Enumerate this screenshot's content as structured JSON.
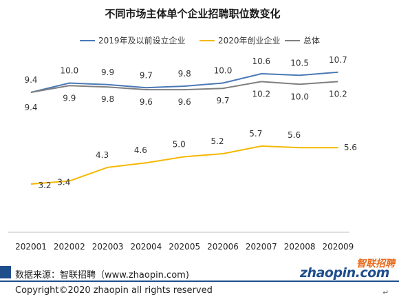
{
  "chart_data": {
    "type": "line",
    "title": "不同市场主体单个企业招聘职位数变化",
    "categories": [
      "202001",
      "202002",
      "202003",
      "202004",
      "202005",
      "202006",
      "202007",
      "202008",
      "202009"
    ],
    "ylim": [
      0,
      12
    ],
    "grid": false,
    "legend_position": "top",
    "series": [
      {
        "name": "2019年及以前设立企业",
        "color": "#4a78b5",
        "values": [
          9.4,
          10.0,
          9.9,
          9.7,
          9.8,
          10.0,
          10.6,
          10.5,
          10.7
        ]
      },
      {
        "name": "2020年创业企业",
        "color": "#f5b800",
        "values": [
          3.2,
          3.4,
          4.3,
          4.6,
          5.0,
          5.2,
          5.7,
          5.6,
          5.6
        ]
      },
      {
        "name": "总体",
        "color": "#7f7f7f",
        "values": [
          9.4,
          9.9,
          9.8,
          9.6,
          9.6,
          9.7,
          10.2,
          10.0,
          10.2
        ]
      }
    ]
  },
  "footer": {
    "source": "数据来源：智联招聘（www.zhaopin.com)",
    "copyright": "Copyright©2020 zhaopin all rights reserved",
    "brand_cn": "智联招聘",
    "brand_en": "zhaopin.com"
  },
  "return_mark": "↵"
}
